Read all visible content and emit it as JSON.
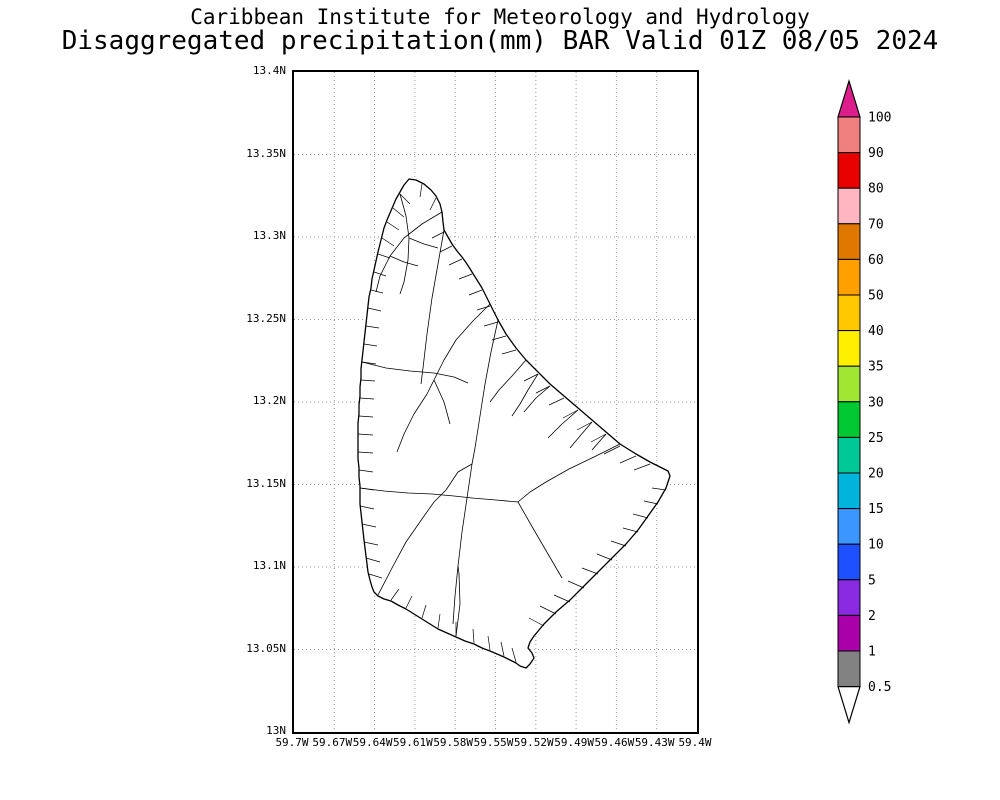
{
  "title": {
    "line1": "Caribbean Institute for Meteorology and Hydrology",
    "line2": "Disaggregated precipitation(mm) BAR Valid 01Z 08/05 2024"
  },
  "map": {
    "lat_labels": [
      "13.4N",
      "13.35N",
      "13.3N",
      "13.25N",
      "13.2N",
      "13.15N",
      "13.1N",
      "13.05N",
      "13N"
    ],
    "lon_labels": [
      "59.7W",
      "59.67W",
      "59.64W",
      "59.61W",
      "59.58W",
      "59.55W",
      "59.52W",
      "59.49W",
      "59.46W",
      "59.43W",
      "59.4W"
    ],
    "grid_color": "#999999",
    "frame_color": "#000000"
  },
  "colorbar": {
    "labels": [
      "100",
      "90",
      "80",
      "70",
      "60",
      "50",
      "40",
      "35",
      "30",
      "25",
      "20",
      "15",
      "10",
      "5",
      "2",
      "1",
      "0.5"
    ],
    "segment_colors": [
      "#f08080",
      "#e80000",
      "#ffb6c1",
      "#e07800",
      "#ffa000",
      "#ffc800",
      "#fff000",
      "#a0e632",
      "#00c832",
      "#00c896",
      "#00b4dc",
      "#3c96ff",
      "#1e50ff",
      "#8a2be2",
      "#aa00aa",
      "#828282"
    ],
    "arrow_top_color": "#dc1e8c",
    "arrow_bottom_color": "#ffffff"
  }
}
